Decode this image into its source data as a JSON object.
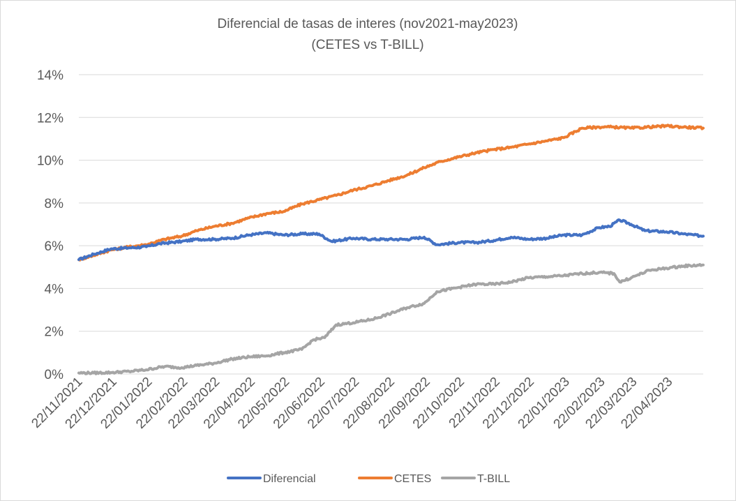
{
  "chart_data": {
    "type": "line",
    "title": "Diferencial de tasas de interes (nov2021-may2023)",
    "subtitle": "(CETES vs T-BILL)",
    "xlabel": "",
    "ylabel": "",
    "ylim": [
      0,
      14
    ],
    "y_ticks": [
      "0%",
      "2%",
      "4%",
      "6%",
      "8%",
      "10%",
      "12%",
      "14%"
    ],
    "x_ticks": [
      "22/11/2021",
      "22/12/2021",
      "22/01/2022",
      "22/02/2022",
      "22/03/2022",
      "22/04/2022",
      "22/05/2022",
      "22/06/2022",
      "22/07/2022",
      "22/08/2022",
      "22/09/2022",
      "22/10/2022",
      "22/11/2022",
      "22/12/2022",
      "22/01/2023",
      "22/02/2023",
      "22/03/2023",
      "22/04/2023"
    ],
    "x_range": [
      "2021-11-22",
      "2023-05-22"
    ],
    "grid": true,
    "legend_position": "bottom",
    "series": [
      {
        "name": "Diferencial",
        "color": "#4472c4",
        "points": [
          [
            "2021-11-22",
            5.35
          ],
          [
            "2021-12-05",
            5.6
          ],
          [
            "2021-12-20",
            5.85
          ],
          [
            "2022-01-05",
            5.9
          ],
          [
            "2022-01-20",
            5.95
          ],
          [
            "2022-02-01",
            6.1
          ],
          [
            "2022-02-20",
            6.2
          ],
          [
            "2022-03-05",
            6.3
          ],
          [
            "2022-03-20",
            6.3
          ],
          [
            "2022-04-05",
            6.35
          ],
          [
            "2022-04-20",
            6.5
          ],
          [
            "2022-05-05",
            6.6
          ],
          [
            "2022-05-20",
            6.5
          ],
          [
            "2022-06-05",
            6.55
          ],
          [
            "2022-06-20",
            6.55
          ],
          [
            "2022-07-01",
            6.2
          ],
          [
            "2022-07-20",
            6.35
          ],
          [
            "2022-08-05",
            6.3
          ],
          [
            "2022-08-20",
            6.3
          ],
          [
            "2022-09-05",
            6.3
          ],
          [
            "2022-09-20",
            6.4
          ],
          [
            "2022-10-01",
            6.05
          ],
          [
            "2022-10-20",
            6.15
          ],
          [
            "2022-11-05",
            6.15
          ],
          [
            "2022-11-20",
            6.25
          ],
          [
            "2022-12-05",
            6.4
          ],
          [
            "2022-12-20",
            6.3
          ],
          [
            "2023-01-05",
            6.35
          ],
          [
            "2023-01-20",
            6.5
          ],
          [
            "2023-02-05",
            6.5
          ],
          [
            "2023-02-20",
            6.85
          ],
          [
            "2023-03-01",
            6.9
          ],
          [
            "2023-03-10",
            7.2
          ],
          [
            "2023-03-20",
            7.0
          ],
          [
            "2023-04-01",
            6.7
          ],
          [
            "2023-04-20",
            6.65
          ],
          [
            "2023-05-05",
            6.55
          ],
          [
            "2023-05-22",
            6.45
          ]
        ]
      },
      {
        "name": "CETES",
        "color": "#ed7d31",
        "points": [
          [
            "2021-11-22",
            5.35
          ],
          [
            "2021-12-05",
            5.55
          ],
          [
            "2021-12-20",
            5.8
          ],
          [
            "2022-01-05",
            5.95
          ],
          [
            "2022-01-20",
            6.05
          ],
          [
            "2022-02-05",
            6.3
          ],
          [
            "2022-02-20",
            6.45
          ],
          [
            "2022-03-05",
            6.7
          ],
          [
            "2022-03-20",
            6.9
          ],
          [
            "2022-04-05",
            7.05
          ],
          [
            "2022-04-20",
            7.3
          ],
          [
            "2022-05-05",
            7.5
          ],
          [
            "2022-05-20",
            7.6
          ],
          [
            "2022-06-05",
            7.95
          ],
          [
            "2022-06-20",
            8.15
          ],
          [
            "2022-07-05",
            8.35
          ],
          [
            "2022-07-20",
            8.6
          ],
          [
            "2022-08-05",
            8.8
          ],
          [
            "2022-08-20",
            9.05
          ],
          [
            "2022-09-05",
            9.3
          ],
          [
            "2022-09-20",
            9.65
          ],
          [
            "2022-10-05",
            9.95
          ],
          [
            "2022-10-20",
            10.15
          ],
          [
            "2022-11-05",
            10.35
          ],
          [
            "2022-11-20",
            10.5
          ],
          [
            "2022-12-05",
            10.6
          ],
          [
            "2022-12-20",
            10.75
          ],
          [
            "2023-01-05",
            10.9
          ],
          [
            "2023-01-20",
            11.05
          ],
          [
            "2023-02-05",
            11.5
          ],
          [
            "2023-02-20",
            11.55
          ],
          [
            "2023-03-05",
            11.55
          ],
          [
            "2023-03-20",
            11.5
          ],
          [
            "2023-04-05",
            11.55
          ],
          [
            "2023-04-20",
            11.6
          ],
          [
            "2023-05-05",
            11.55
          ],
          [
            "2023-05-22",
            11.5
          ]
        ]
      },
      {
        "name": "T-BILL",
        "color": "#a5a5a5",
        "points": [
          [
            "2021-11-22",
            0.05
          ],
          [
            "2021-12-05",
            0.05
          ],
          [
            "2021-12-20",
            0.07
          ],
          [
            "2022-01-05",
            0.12
          ],
          [
            "2022-01-20",
            0.2
          ],
          [
            "2022-02-05",
            0.35
          ],
          [
            "2022-02-20",
            0.3
          ],
          [
            "2022-03-05",
            0.4
          ],
          [
            "2022-03-20",
            0.5
          ],
          [
            "2022-04-05",
            0.7
          ],
          [
            "2022-04-20",
            0.8
          ],
          [
            "2022-05-05",
            0.85
          ],
          [
            "2022-05-20",
            1.0
          ],
          [
            "2022-06-05",
            1.15
          ],
          [
            "2022-06-15",
            1.6
          ],
          [
            "2022-06-25",
            1.7
          ],
          [
            "2022-07-05",
            2.3
          ],
          [
            "2022-07-20",
            2.4
          ],
          [
            "2022-08-05",
            2.55
          ],
          [
            "2022-08-20",
            2.8
          ],
          [
            "2022-09-05",
            3.1
          ],
          [
            "2022-09-20",
            3.3
          ],
          [
            "2022-10-01",
            3.85
          ],
          [
            "2022-10-20",
            4.05
          ],
          [
            "2022-11-05",
            4.2
          ],
          [
            "2022-11-20",
            4.2
          ],
          [
            "2022-12-05",
            4.3
          ],
          [
            "2022-12-20",
            4.5
          ],
          [
            "2023-01-05",
            4.55
          ],
          [
            "2023-01-20",
            4.6
          ],
          [
            "2023-02-05",
            4.7
          ],
          [
            "2023-02-20",
            4.75
          ],
          [
            "2023-03-05",
            4.7
          ],
          [
            "2023-03-10",
            4.3
          ],
          [
            "2023-03-20",
            4.5
          ],
          [
            "2023-04-05",
            4.85
          ],
          [
            "2023-04-20",
            4.95
          ],
          [
            "2023-05-05",
            5.05
          ],
          [
            "2023-05-22",
            5.1
          ]
        ]
      }
    ]
  }
}
